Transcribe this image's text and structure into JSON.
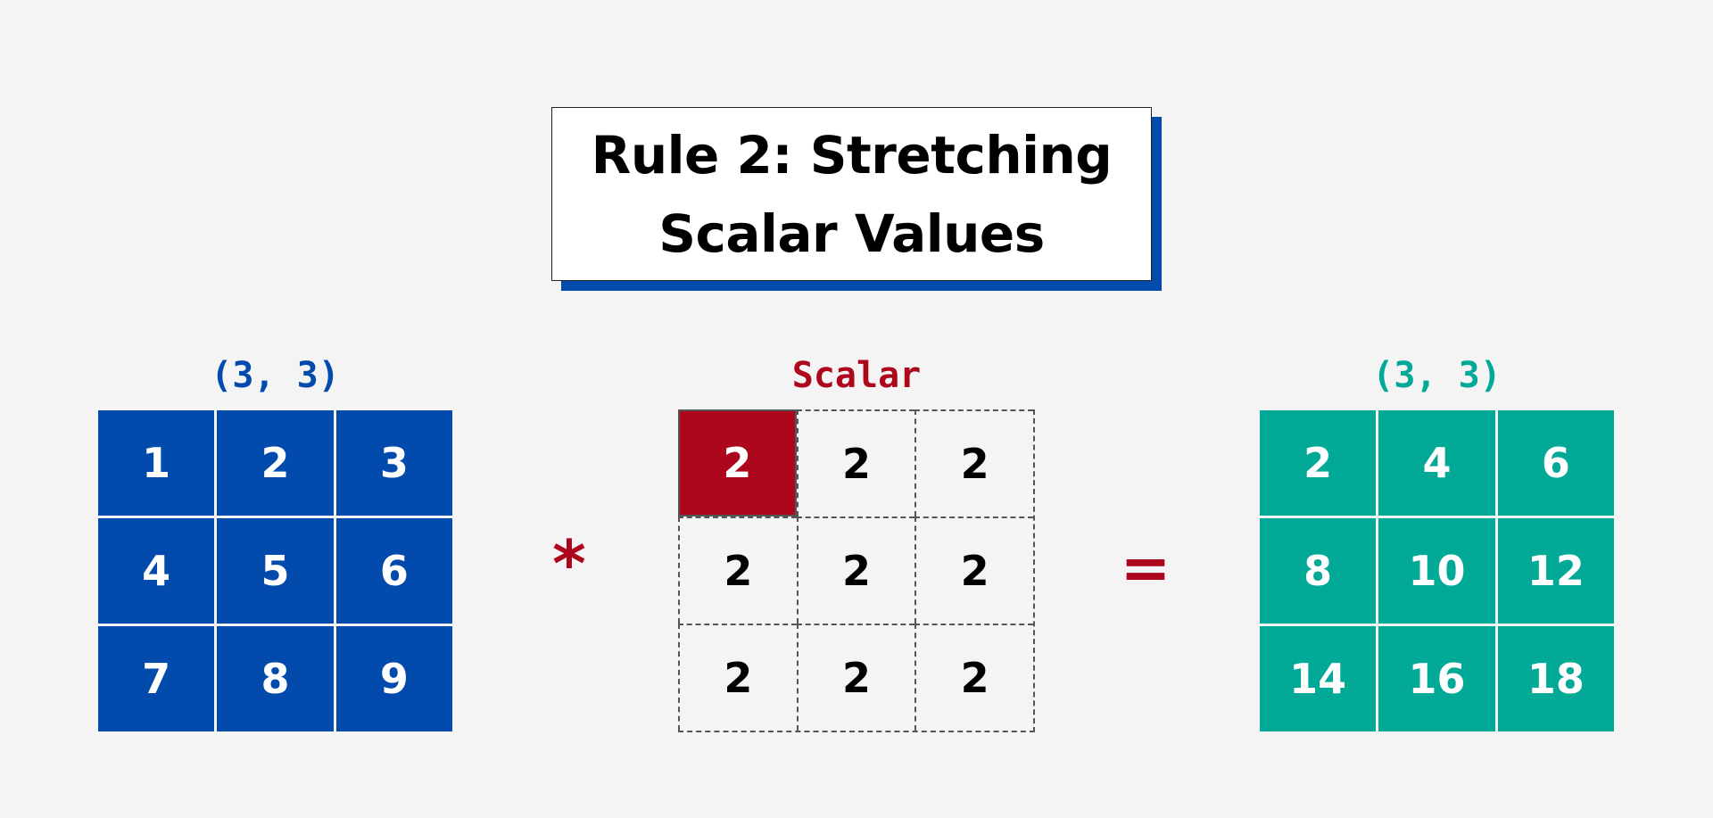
{
  "title": {
    "line1": "Rule 2: Stretching",
    "line2": "Scalar Values"
  },
  "colors": {
    "background": "#f4f4f4",
    "blue": "#034aad",
    "red": "#ad071d",
    "teal": "#01a996"
  },
  "left_matrix": {
    "shape_label": "(3, 3)",
    "cells": [
      "1",
      "2",
      "3",
      "4",
      "5",
      "6",
      "7",
      "8",
      "9"
    ]
  },
  "operator_multiply": "*",
  "scalar_matrix": {
    "label": "Scalar",
    "cells": [
      "2",
      "2",
      "2",
      "2",
      "2",
      "2",
      "2",
      "2",
      "2"
    ]
  },
  "operator_equals": "=",
  "result_matrix": {
    "shape_label": "(3, 3)",
    "cells": [
      "2",
      "4",
      "6",
      "8",
      "10",
      "12",
      "14",
      "16",
      "18"
    ]
  }
}
